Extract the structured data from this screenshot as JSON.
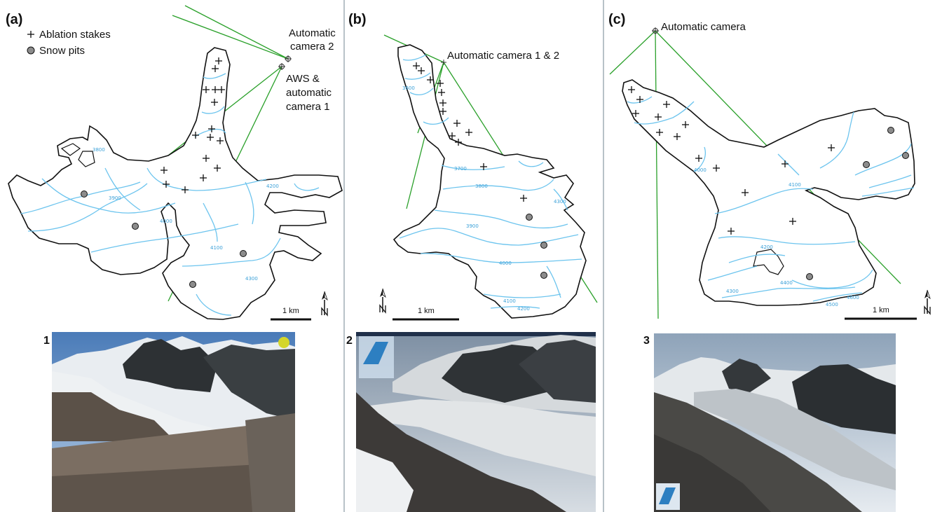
{
  "panels": {
    "a": {
      "label": "(a)",
      "legend": {
        "stakes": "Ablation stakes",
        "pits": "Snow pits"
      },
      "annotations": [
        "Automatic",
        "camera 2",
        "AWS &",
        "automatic",
        "camera 1"
      ],
      "scale": "1 km",
      "contours": [
        "3800",
        "3900",
        "4000",
        "4100",
        "4200",
        "4300"
      ]
    },
    "b": {
      "label": "(b)",
      "annotation": "Automatic camera 1 & 2",
      "scale": "1 km",
      "contours": [
        "3600",
        "3700",
        "3800",
        "3900",
        "4000",
        "4100",
        "4200",
        "4300"
      ]
    },
    "c": {
      "label": "(c)",
      "annotation": "Automatic camera",
      "scale": "1 km",
      "contours": [
        "4000",
        "4100",
        "4200",
        "4300",
        "4400",
        "4500",
        "4600"
      ]
    }
  },
  "photos": [
    "1",
    "2",
    "3"
  ],
  "icons": {
    "north_arrow": "north-arrow-icon",
    "stake": "plus-marker",
    "pit": "circle-marker",
    "photo": "photo-placeholder"
  },
  "colors": {
    "outline": "#111111",
    "contour": "#6cc4ee",
    "sightline": "#2aa02a",
    "pit": "#8c8c8c",
    "divider": "#b8c2c8"
  }
}
